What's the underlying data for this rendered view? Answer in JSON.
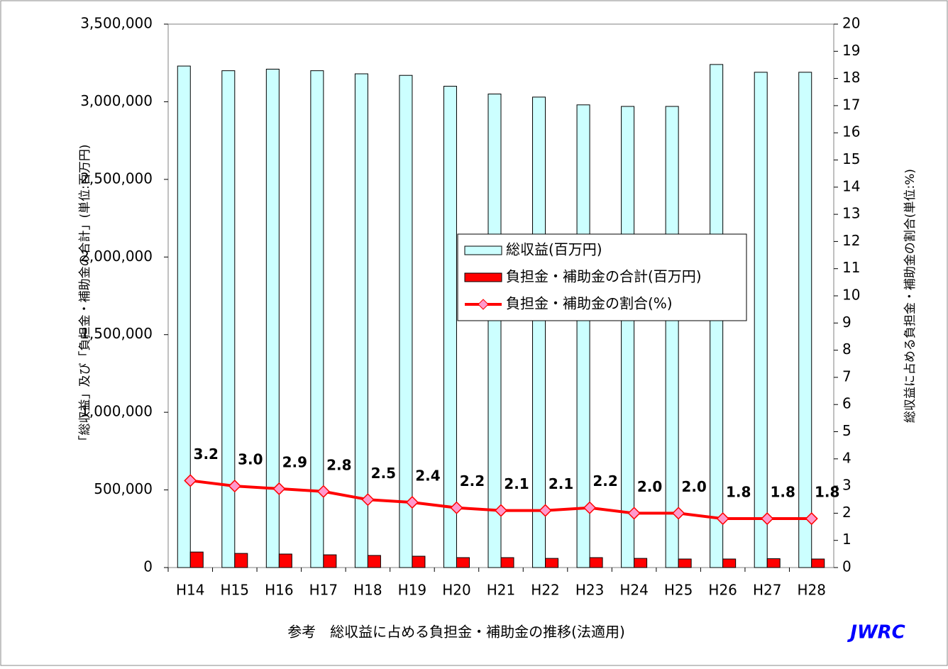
{
  "chart_data": {
    "type": "bar",
    "title": "参考　総収益に占める負担金・補助金の推移(法適用)",
    "source": "JWRC",
    "y_label": "「総収益」及び「負担金・補助金の合計」(単位:百万円)",
    "y2_label": "総収益に占める負担金・補助金の割合(単位:%)",
    "categories": [
      "H14",
      "H15",
      "H16",
      "H17",
      "H18",
      "H19",
      "H20",
      "H21",
      "H22",
      "H23",
      "H24",
      "H25",
      "H26",
      "H27",
      "H28"
    ],
    "series": [
      {
        "name": "総収益(百万円)",
        "type": "bar",
        "color": "#ccffff",
        "values": [
          3230000,
          3200000,
          3210000,
          3200000,
          3180000,
          3170000,
          3100000,
          3050000,
          3030000,
          2980000,
          2970000,
          2970000,
          3240000,
          3190000,
          3190000
        ]
      },
      {
        "name": "負担金・補助金の合計(百万円)",
        "type": "bar",
        "color": "#ff0000",
        "values": [
          100000,
          91000,
          87000,
          82000,
          78000,
          73000,
          64000,
          64000,
          59000,
          64000,
          59000,
          55000,
          55000,
          57000,
          55000
        ]
      },
      {
        "name": "負担金・補助金の割合(%)",
        "type": "line",
        "axis": "y2",
        "color": "#ff0000",
        "marker_color": "#ff99cc",
        "values": [
          3.2,
          3.0,
          2.9,
          2.8,
          2.5,
          2.4,
          2.2,
          2.1,
          2.1,
          2.2,
          2.0,
          2.0,
          1.8,
          1.8,
          1.8
        ],
        "value_labels": [
          "3.2",
          "3.0",
          "2.9",
          "2.8",
          "2.5",
          "2.4",
          "2.2",
          "2.1",
          "2.1",
          "2.2",
          "2.0",
          "2.0",
          "1.8",
          "1.8",
          "1.8"
        ]
      }
    ],
    "ylim": [
      0,
      3500000
    ],
    "yticks": [
      {
        "value": 0,
        "label": "0"
      },
      {
        "value": 500000,
        "label": "500,000"
      },
      {
        "value": 1000000,
        "label": "1,000,000"
      },
      {
        "value": 1500000,
        "label": "1,500,000"
      },
      {
        "value": 2000000,
        "label": "2,000,000"
      },
      {
        "value": 2500000,
        "label": "2,500,000"
      },
      {
        "value": 3000000,
        "label": "3,000,000"
      },
      {
        "value": 3500000,
        "label": "3,500,000"
      }
    ],
    "y2lim": [
      0,
      20
    ],
    "y2ticks": [
      0,
      1,
      2,
      3,
      4,
      5,
      6,
      7,
      8,
      9,
      10,
      11,
      12,
      13,
      14,
      15,
      16,
      17,
      18,
      19,
      20
    ],
    "grid": false
  }
}
